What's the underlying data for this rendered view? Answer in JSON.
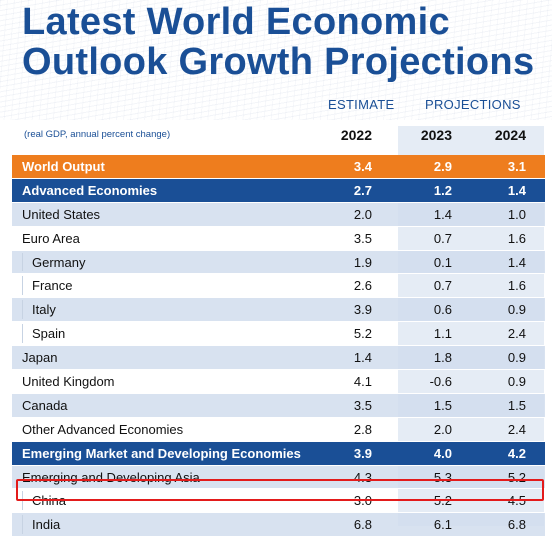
{
  "title": "Latest World Economic Outlook Growth Projections",
  "header": {
    "estimate": "ESTIMATE",
    "projections": "PROJECTIONS",
    "unit_note": "(real GDP, annual percent change)",
    "years": [
      "2022",
      "2023",
      "2024"
    ]
  },
  "rows": [
    {
      "label": "World Output",
      "v": [
        "3.4",
        "2.9",
        "3.1"
      ],
      "style": "orange"
    },
    {
      "label": "Advanced Economies",
      "v": [
        "2.7",
        "1.2",
        "1.4"
      ],
      "style": "dark"
    },
    {
      "label": "United States",
      "v": [
        "2.0",
        "1.4",
        "1.0"
      ],
      "style": "light"
    },
    {
      "label": "Euro Area",
      "v": [
        "3.5",
        "0.7",
        "1.6"
      ],
      "style": "white"
    },
    {
      "label": "Germany",
      "v": [
        "1.9",
        "0.1",
        "1.4"
      ],
      "style": "light",
      "sub": true
    },
    {
      "label": "France",
      "v": [
        "2.6",
        "0.7",
        "1.6"
      ],
      "style": "white",
      "sub": true
    },
    {
      "label": "Italy",
      "v": [
        "3.9",
        "0.6",
        "0.9"
      ],
      "style": "light",
      "sub": true
    },
    {
      "label": "Spain",
      "v": [
        "5.2",
        "1.1",
        "2.4"
      ],
      "style": "white",
      "sub": true
    },
    {
      "label": "Japan",
      "v": [
        "1.4",
        "1.8",
        "0.9"
      ],
      "style": "light"
    },
    {
      "label": "United Kingdom",
      "v": [
        "4.1",
        "-0.6",
        "0.9"
      ],
      "style": "white"
    },
    {
      "label": "Canada",
      "v": [
        "3.5",
        "1.5",
        "1.5"
      ],
      "style": "light"
    },
    {
      "label": "Other Advanced Economies",
      "v": [
        "2.8",
        "2.0",
        "2.4"
      ],
      "style": "white"
    },
    {
      "label": "Emerging Market and Developing Economies",
      "v": [
        "3.9",
        "4.0",
        "4.2"
      ],
      "style": "dark"
    },
    {
      "label": "Emerging and Developing Asia",
      "v": [
        "4.3",
        "5.3",
        "5.2"
      ],
      "style": "light"
    },
    {
      "label": "China",
      "v": [
        "3.0",
        "5.2",
        "4.5"
      ],
      "style": "white",
      "sub": true,
      "highlighted": true
    },
    {
      "label": "India",
      "v": [
        "6.8",
        "6.1",
        "6.8"
      ],
      "style": "light",
      "sub": true
    }
  ],
  "colors": {
    "title_blue": "#1a4f96",
    "orange": "#ee7d1e",
    "light_row": "#d1ddef",
    "highlight_red": "#e31b1b"
  }
}
